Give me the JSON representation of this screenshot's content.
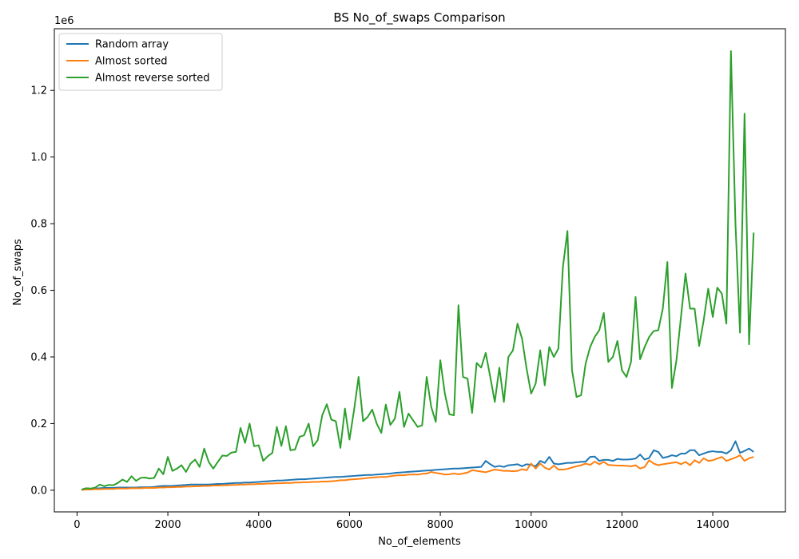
{
  "chart_data": {
    "type": "line",
    "title": "BS No_of_swaps Comparison",
    "xlabel": "No_of_elements",
    "ylabel": "No_of_swaps",
    "y_offset_label": "1e6",
    "xlim": [
      -500,
      15600
    ],
    "ylim": [
      -65000,
      1385000
    ],
    "x_ticks": [
      0,
      2000,
      4000,
      6000,
      8000,
      10000,
      12000,
      14000
    ],
    "x_tick_labels": [
      "0",
      "2000",
      "4000",
      "6000",
      "8000",
      "10000",
      "12000",
      "14000"
    ],
    "y_ticks": [
      0,
      200000,
      400000,
      600000,
      800000,
      1000000,
      1200000
    ],
    "y_tick_labels": [
      "0.0",
      "0.2",
      "0.4",
      "0.6",
      "0.8",
      "1.0",
      "1.2"
    ],
    "legend_position": "top-left",
    "x_start": 100,
    "x_step": 100,
    "series": [
      {
        "name": "Random array",
        "color": "#1f77b4",
        "values": [
          2000,
          3000,
          4000,
          5000,
          6000,
          7000,
          7000,
          7000,
          8000,
          8000,
          8000,
          8000,
          8000,
          9000,
          9000,
          9000,
          10000,
          12000,
          13000,
          13000,
          13000,
          14000,
          15000,
          16000,
          17000,
          17000,
          17000,
          17000,
          17000,
          18000,
          19000,
          19000,
          20000,
          21000,
          22000,
          22000,
          23000,
          23000,
          24000,
          25000,
          26000,
          27000,
          28000,
          29000,
          29000,
          30000,
          31000,
          32000,
          33000,
          33000,
          34000,
          35000,
          36000,
          37000,
          38000,
          39000,
          40000,
          40000,
          41000,
          42000,
          43000,
          44000,
          45000,
          46000,
          46000,
          47000,
          48000,
          49000,
          50000,
          52000,
          53000,
          54000,
          55000,
          56000,
          57000,
          58000,
          59000,
          60000,
          61000,
          62000,
          63000,
          64000,
          65000,
          65000,
          66000,
          67000,
          68000,
          69000,
          70000,
          88000,
          78000,
          70000,
          73000,
          70000,
          75000,
          76000,
          78000,
          72000,
          78000,
          76000,
          72000,
          88000,
          82000,
          100000,
          80000,
          78000,
          80000,
          82000,
          82000,
          84000,
          85000,
          86000,
          100000,
          101000,
          88000,
          91000,
          91000,
          88000,
          94000,
          92000,
          92000,
          93000,
          95000,
          107000,
          92000,
          97000,
          120000,
          115000,
          97000,
          100000,
          105000,
          102000,
          110000,
          110000,
          120000,
          120000,
          105000,
          110000,
          115000,
          117000,
          115000,
          115000,
          110000,
          120000,
          147000,
          112000,
          118000,
          125000,
          115000
        ]
      },
      {
        "name": "Almost sorted",
        "color": "#ff7f0e",
        "values": [
          1000,
          2000,
          2000,
          3000,
          3000,
          4000,
          4000,
          4000,
          5000,
          5000,
          5000,
          6000,
          6000,
          6000,
          7000,
          7000,
          7000,
          8000,
          8000,
          9000,
          9000,
          10000,
          10000,
          11000,
          11000,
          12000,
          12000,
          13000,
          13000,
          14000,
          14000,
          15000,
          15000,
          16000,
          16000,
          17000,
          17000,
          18000,
          18000,
          19000,
          19000,
          20000,
          20000,
          21000,
          21000,
          22000,
          22000,
          23000,
          23000,
          24000,
          24000,
          25000,
          25000,
          26000,
          26000,
          27000,
          28000,
          30000,
          30000,
          32000,
          33000,
          34000,
          35000,
          37000,
          38000,
          39000,
          40000,
          40000,
          42000,
          44000,
          45000,
          45000,
          47000,
          47000,
          47000,
          49000,
          50000,
          55000,
          52000,
          50000,
          47000,
          48000,
          50000,
          48000,
          50000,
          53000,
          60000,
          58000,
          56000,
          54000,
          58000,
          62000,
          60000,
          58000,
          58000,
          57000,
          58000,
          63000,
          60000,
          80000,
          65000,
          80000,
          68000,
          62000,
          74000,
          62000,
          62000,
          64000,
          68000,
          72000,
          75000,
          80000,
          76000,
          86000,
          78000,
          85000,
          76000,
          75000,
          74000,
          74000,
          73000,
          72000,
          75000,
          65000,
          70000,
          90000,
          80000,
          75000,
          78000,
          80000,
          82000,
          84000,
          78000,
          85000,
          75000,
          90000,
          82000,
          96000,
          88000,
          90000,
          95000,
          100000,
          88000,
          93000,
          98000,
          105000,
          88000,
          96000,
          100000
        ]
      },
      {
        "name": "Almost reverse sorted",
        "color": "#2ca02c",
        "values": [
          2000,
          6000,
          5000,
          8000,
          17000,
          12000,
          16000,
          15000,
          22000,
          32000,
          25000,
          42000,
          28000,
          37000,
          38000,
          35000,
          37000,
          65000,
          48000,
          100000,
          58000,
          65000,
          75000,
          55000,
          80000,
          92000,
          70000,
          125000,
          85000,
          65000,
          85000,
          104000,
          103000,
          113000,
          115000,
          187000,
          142000,
          200000,
          132000,
          135000,
          88000,
          102000,
          112000,
          190000,
          133000,
          192000,
          120000,
          122000,
          160000,
          165000,
          200000,
          132000,
          150000,
          225000,
          258000,
          212000,
          207000,
          127000,
          245000,
          152000,
          240000,
          340000,
          207000,
          220000,
          242000,
          200000,
          172000,
          257000,
          196000,
          215000,
          295000,
          190000,
          230000,
          210000,
          190000,
          195000,
          340000,
          250000,
          205000,
          390000,
          290000,
          228000,
          225000,
          555000,
          340000,
          335000,
          232000,
          382000,
          368000,
          412000,
          340000,
          265000,
          368000,
          265000,
          400000,
          420000,
          500000,
          455000,
          365000,
          290000,
          320000,
          420000,
          315000,
          430000,
          400000,
          425000,
          670000,
          778000,
          360000,
          280000,
          285000,
          380000,
          430000,
          460000,
          480000,
          532000,
          385000,
          400000,
          448000,
          360000,
          340000,
          385000,
          580000,
          393000,
          430000,
          460000,
          478000,
          480000,
          545000,
          685000,
          307000,
          390000,
          520000,
          650000,
          545000,
          545000,
          433000,
          510000,
          605000,
          520000,
          608000,
          590000,
          500000,
          1318000,
          800000,
          473000,
          1130000,
          438000,
          773000
        ]
      }
    ]
  }
}
